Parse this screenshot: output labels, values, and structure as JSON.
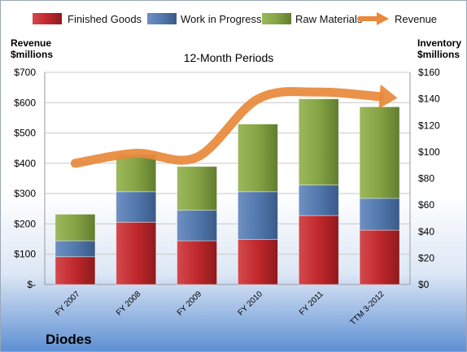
{
  "chart_data": {
    "type": "bar",
    "stacked": true,
    "title": "12-Month Periods",
    "company": "Diodes",
    "categories": [
      "FY 2007",
      "FY 2008",
      "FY 2009",
      "FY 2010",
      "FY 2011",
      "TTM 3-2012"
    ],
    "series": [
      {
        "name": "Finished Goods",
        "axis": "right",
        "color": "#c0282c",
        "values": [
          21,
          47,
          33,
          34,
          52,
          41
        ]
      },
      {
        "name": "Work in Progress",
        "axis": "right",
        "color": "#4a6fa5",
        "values": [
          12,
          23,
          23,
          36,
          23,
          24
        ]
      },
      {
        "name": "Raw Materials",
        "axis": "right",
        "color": "#7e9c3e",
        "values": [
          20,
          28,
          33,
          51,
          65,
          69
        ]
      }
    ],
    "line_series": {
      "name": "Revenue",
      "axis": "left",
      "color": "#e8893b",
      "values": [
        400,
        433,
        420,
        612,
        635,
        620
      ]
    },
    "y_left": {
      "label_line1": "Revenue",
      "label_line2": "$millions",
      "ylim": [
        0,
        700
      ],
      "ticks": [
        "$-",
        "$100",
        "$200",
        "$300",
        "$400",
        "$500",
        "$600",
        "$700"
      ]
    },
    "y_right": {
      "label_line1": "Inventory",
      "label_line2": "$millions",
      "ylim": [
        0,
        160
      ],
      "ticks": [
        "$0",
        "$20",
        "$40",
        "$60",
        "$80",
        "$100",
        "$120",
        "$140",
        "$160"
      ]
    },
    "legend": [
      "Finished Goods",
      "Work in Progress",
      "Raw Materials",
      "Revenue"
    ],
    "legend_position": "top",
    "grid": true
  }
}
